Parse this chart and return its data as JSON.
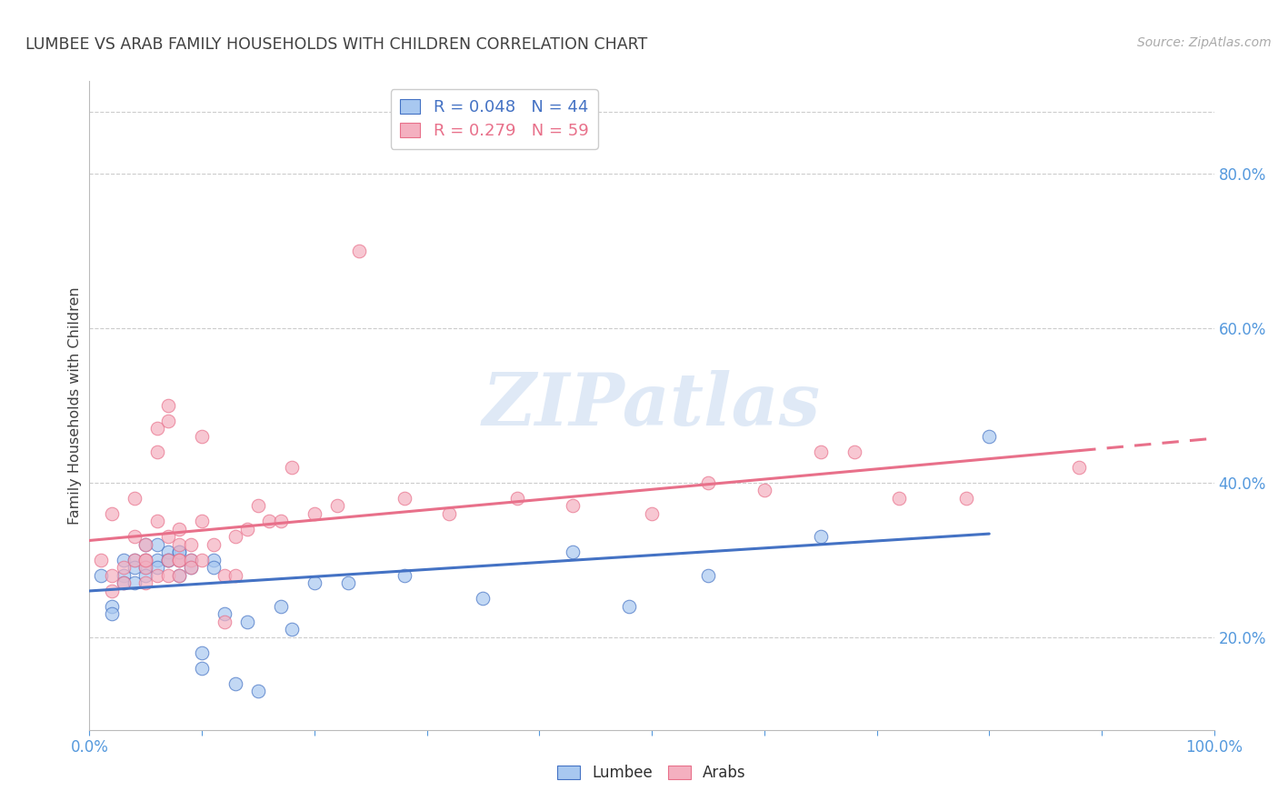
{
  "title": "LUMBEE VS ARAB FAMILY HOUSEHOLDS WITH CHILDREN CORRELATION CHART",
  "source": "Source: ZipAtlas.com",
  "ylabel": "Family Households with Children",
  "ytick_labels": [
    "20.0%",
    "40.0%",
    "60.0%",
    "80.0%"
  ],
  "ytick_values": [
    0.2,
    0.4,
    0.6,
    0.8
  ],
  "xlim": [
    0.0,
    1.0
  ],
  "ylim": [
    0.08,
    0.92
  ],
  "legend_blue_r": "0.048",
  "legend_blue_n": "44",
  "legend_pink_r": "0.279",
  "legend_pink_n": "59",
  "legend_label_blue": "Lumbee",
  "legend_label_pink": "Arabs",
  "blue_color": "#a8c8f0",
  "pink_color": "#f4b0c0",
  "blue_line_color": "#4472c4",
  "pink_line_color": "#e8708a",
  "watermark_text": "ZIPatlas",
  "title_color": "#404040",
  "axis_color": "#5599dd",
  "grid_color": "#cccccc",
  "lumbee_x": [
    0.01,
    0.02,
    0.02,
    0.03,
    0.03,
    0.03,
    0.04,
    0.04,
    0.04,
    0.05,
    0.05,
    0.05,
    0.05,
    0.06,
    0.06,
    0.06,
    0.07,
    0.07,
    0.07,
    0.08,
    0.08,
    0.08,
    0.08,
    0.09,
    0.09,
    0.1,
    0.1,
    0.11,
    0.11,
    0.12,
    0.13,
    0.14,
    0.15,
    0.17,
    0.18,
    0.2,
    0.23,
    0.28,
    0.35,
    0.43,
    0.48,
    0.55,
    0.65,
    0.8
  ],
  "lumbee_y": [
    0.28,
    0.24,
    0.23,
    0.28,
    0.3,
    0.27,
    0.3,
    0.29,
    0.27,
    0.3,
    0.32,
    0.29,
    0.28,
    0.32,
    0.3,
    0.29,
    0.3,
    0.31,
    0.3,
    0.3,
    0.31,
    0.31,
    0.28,
    0.3,
    0.29,
    0.18,
    0.16,
    0.3,
    0.29,
    0.23,
    0.14,
    0.22,
    0.13,
    0.24,
    0.21,
    0.27,
    0.27,
    0.28,
    0.25,
    0.31,
    0.24,
    0.28,
    0.33,
    0.46
  ],
  "arab_x": [
    0.01,
    0.02,
    0.02,
    0.02,
    0.03,
    0.03,
    0.04,
    0.04,
    0.04,
    0.05,
    0.05,
    0.05,
    0.05,
    0.05,
    0.06,
    0.06,
    0.06,
    0.06,
    0.07,
    0.07,
    0.07,
    0.07,
    0.07,
    0.08,
    0.08,
    0.08,
    0.08,
    0.08,
    0.09,
    0.09,
    0.09,
    0.1,
    0.1,
    0.1,
    0.11,
    0.12,
    0.12,
    0.13,
    0.13,
    0.14,
    0.15,
    0.16,
    0.17,
    0.18,
    0.2,
    0.22,
    0.24,
    0.28,
    0.32,
    0.38,
    0.43,
    0.5,
    0.55,
    0.6,
    0.65,
    0.68,
    0.72,
    0.78,
    0.88
  ],
  "arab_y": [
    0.3,
    0.36,
    0.28,
    0.26,
    0.29,
    0.27,
    0.38,
    0.33,
    0.3,
    0.3,
    0.29,
    0.27,
    0.32,
    0.3,
    0.47,
    0.44,
    0.35,
    0.28,
    0.5,
    0.48,
    0.33,
    0.3,
    0.28,
    0.3,
    0.34,
    0.3,
    0.32,
    0.28,
    0.3,
    0.32,
    0.29,
    0.3,
    0.46,
    0.35,
    0.32,
    0.28,
    0.22,
    0.33,
    0.28,
    0.34,
    0.37,
    0.35,
    0.35,
    0.42,
    0.36,
    0.37,
    0.7,
    0.38,
    0.36,
    0.38,
    0.37,
    0.36,
    0.4,
    0.39,
    0.44,
    0.44,
    0.38,
    0.38,
    0.42
  ]
}
